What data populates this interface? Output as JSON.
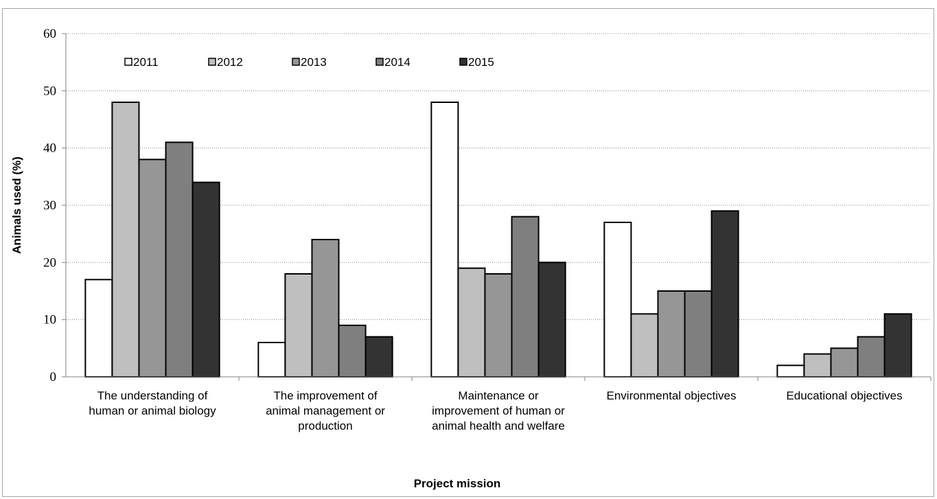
{
  "chart_data": {
    "type": "bar",
    "title": "",
    "xlabel": "Project mission",
    "ylabel": "Animals used (%)",
    "ylim": [
      0,
      60
    ],
    "yticks": [
      0,
      10,
      20,
      30,
      40,
      50,
      60
    ],
    "grid": "horizontal dotted",
    "legend_position": "top-left, horizontal, inside plot",
    "categories": [
      [
        "The understanding of",
        "human or animal biology"
      ],
      [
        "The improvement of",
        "animal management or",
        "production"
      ],
      [
        "Maintenance or",
        "improvement of human or",
        "animal health and welfare"
      ],
      [
        "Environmental objectives"
      ],
      [
        "Educational objectives"
      ]
    ],
    "series": [
      {
        "name": "2011",
        "color": "#ffffff",
        "values": [
          17,
          6,
          48,
          27,
          2
        ]
      },
      {
        "name": "2012",
        "color": "#bfbfbf",
        "values": [
          48,
          18,
          19,
          11,
          4
        ]
      },
      {
        "name": "2013",
        "color": "#969696",
        "values": [
          38,
          24,
          18,
          15,
          5
        ]
      },
      {
        "name": "2014",
        "color": "#7f7f7f",
        "values": [
          41,
          9,
          28,
          15,
          7
        ]
      },
      {
        "name": "2015",
        "color": "#333333",
        "values": [
          34,
          7,
          20,
          29,
          11
        ]
      }
    ]
  }
}
